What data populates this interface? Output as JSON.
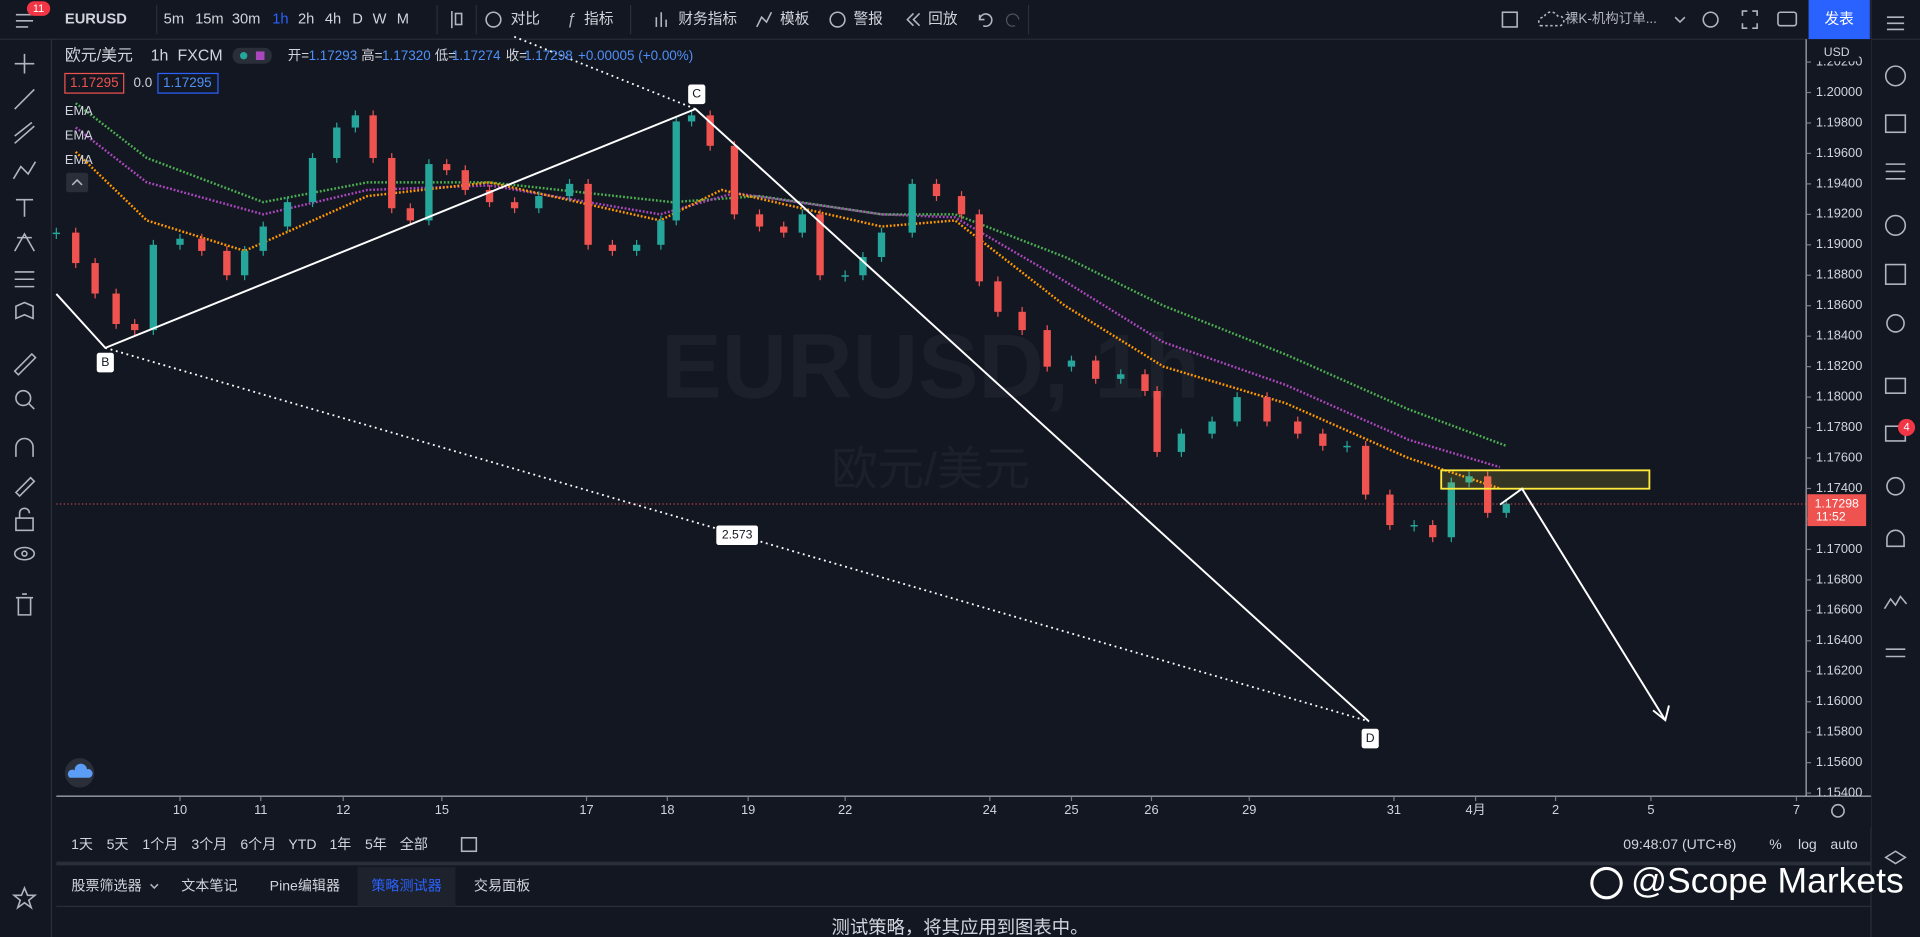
{
  "toolbar": {
    "badge": "11",
    "symbol": "EURUSD",
    "intervals": [
      "5m",
      "15m",
      "30m",
      "1h",
      "2h",
      "4h",
      "D",
      "W",
      "M"
    ],
    "buttons": [
      "对比",
      "指标",
      "财务指标",
      "模板",
      "警报",
      "回放"
    ],
    "layout_name": "裸K-机构订单...",
    "publish": "发表"
  },
  "legend": {
    "name": "欧元/美元",
    "interval": "1h",
    "source": "FXCM",
    "ohlc": [
      {
        "key": "开=",
        "value": "1.17293"
      },
      {
        "key": "高=",
        "value": "1.17320"
      },
      {
        "key": "低=",
        "value": "1.17274"
      },
      {
        "key": "收=",
        "value": "1.17298"
      }
    ],
    "change": "+0.00005 (+0.00%)",
    "bid": "1.17295",
    "spread": "0.0",
    "ask": "1.17295"
  },
  "chart_data": {
    "type": "candlestick",
    "currency": "USD",
    "watermark": [
      "EURUSD, 1h",
      "欧元/美元"
    ],
    "up_color": "#26a69a",
    "down_color": "#ef5350",
    "x": [
      -1.53,
      -1.29,
      -1.05,
      -0.79,
      -0.56,
      -0.33,
      0,
      0.27,
      0.58,
      0.8,
      1.03,
      1.33,
      1.64,
      1.94,
      2.17,
      2.39,
      2.62,
      2.85,
      3.08,
      3.3,
      3.53,
      3.83,
      4.14,
      4.44,
      4.82,
      5.05,
      5.35,
      5.65,
      5.95,
      6.14,
      6.33,
      6.56,
      6.86,
      7.17,
      7.47,
      7.7,
      7.92,
      8.23,
      8.45,
      8.68,
      9.06,
      9.36,
      9.67,
      9.89,
      10.12,
      10.42,
      10.73,
      11.03,
      11.33,
      11.64,
      11.94,
      12.09,
      12.39,
      12.77,
      13.08,
      13.45,
      13.83,
      14.14,
      14.44,
      14.67,
      14.97,
      15.27,
      15.5,
      15.73,
      15.95,
      16.18,
      16.41
    ],
    "close": [
      1.1908,
      1.1888,
      1.1868,
      1.1848,
      1.1844,
      1.19,
      1.1904,
      1.1896,
      1.188,
      1.1896,
      1.1912,
      1.1928,
      1.1957,
      1.1977,
      1.1985,
      1.1957,
      1.1924,
      1.1916,
      1.1953,
      1.1949,
      1.1936,
      1.1928,
      1.1924,
      1.1932,
      1.194,
      1.19,
      1.1896,
      1.19,
      1.1916,
      1.1981,
      1.1985,
      1.1965,
      1.192,
      1.1912,
      1.1908,
      1.192,
      1.188,
      1.188,
      1.1892,
      1.1908,
      1.194,
      1.1932,
      1.192,
      1.1876,
      1.1856,
      1.1844,
      1.182,
      1.1824,
      1.1812,
      1.1815,
      1.1804,
      1.1764,
      1.1776,
      1.1784,
      1.18,
      1.1784,
      1.1776,
      1.1768,
      1.1768,
      1.1736,
      1.1716,
      1.1716,
      1.1708,
      1.1744,
      1.1748,
      1.1724,
      1.173
    ],
    "ema": [
      {
        "name": "EMA",
        "color": "#4caf50",
        "x": [
          -1.29,
          -0.41,
          1.03,
          2.32,
          3.83,
          6.09,
          7.17,
          8.68,
          9.59,
          10.95,
          12.17,
          13.68,
          15.2,
          16.41
        ],
        "values": [
          1.1993,
          1.1957,
          1.1928,
          1.1941,
          1.1941,
          1.1928,
          1.1932,
          1.192,
          1.192,
          1.1892,
          1.186,
          1.1828,
          1.1792,
          1.1768
        ]
      },
      {
        "name": "EMA",
        "color": "#ab47bc",
        "x": [
          -1.29,
          -0.41,
          1.03,
          2.32,
          3.83,
          5.94,
          6.86,
          8.68,
          9.59,
          10.95,
          12.17,
          13.68,
          15.2,
          16.33
        ],
        "values": [
          1.1977,
          1.1941,
          1.192,
          1.1936,
          1.1939,
          1.192,
          1.1934,
          1.192,
          1.1918,
          1.1876,
          1.1836,
          1.1808,
          1.1772,
          1.1754
        ]
      },
      {
        "name": "EMA",
        "color": "#ff9800",
        "x": [
          -1.29,
          -0.41,
          0.8,
          2.32,
          3.83,
          5.94,
          6.7,
          8.68,
          9.59,
          10.95,
          12.17,
          13.68,
          15.2,
          16.33
        ],
        "values": [
          1.1961,
          1.1916,
          1.1896,
          1.1932,
          1.1941,
          1.1916,
          1.1936,
          1.1912,
          1.1916,
          1.186,
          1.182,
          1.1796,
          1.176,
          1.174
        ]
      }
    ],
    "current_price": 1.17298,
    "countdown": "11:52",
    "annotations": {
      "points": [
        "B",
        "C",
        "D"
      ],
      "ratio": "2.573"
    },
    "xlim": [
      -1.53,
      20.12
    ],
    "xticks": [
      {
        "value": 0,
        "label": "10"
      },
      {
        "value": 1,
        "label": "11"
      },
      {
        "value": 2.02,
        "label": "12"
      },
      {
        "value": 3.24,
        "label": "15"
      },
      {
        "value": 5.03,
        "label": "17"
      },
      {
        "value": 6.03,
        "label": "18"
      },
      {
        "value": 7.03,
        "label": "19"
      },
      {
        "value": 8.23,
        "label": "22"
      },
      {
        "value": 10.02,
        "label": "24"
      },
      {
        "value": 11.03,
        "label": "25"
      },
      {
        "value": 12.02,
        "label": "26"
      },
      {
        "value": 13.23,
        "label": "29"
      },
      {
        "value": 15.02,
        "label": "31"
      },
      {
        "value": 16.03,
        "label": "4月"
      },
      {
        "value": 17.02,
        "label": "2"
      },
      {
        "value": 18.2,
        "label": "5"
      },
      {
        "value": 20,
        "label": "7"
      }
    ],
    "ylim": [
      1.1538,
      1.2035
    ],
    "yticks": [
      {
        "value": 1.154,
        "label": "1.15400"
      },
      {
        "value": 1.156,
        "label": "1.15600"
      },
      {
        "value": 1.158,
        "label": "1.15800"
      },
      {
        "value": 1.16,
        "label": "1.16000"
      },
      {
        "value": 1.162,
        "label": "1.16200"
      },
      {
        "value": 1.164,
        "label": "1.16400"
      },
      {
        "value": 1.166,
        "label": "1.16600"
      },
      {
        "value": 1.168,
        "label": "1.16800"
      },
      {
        "value": 1.17,
        "label": "1.17000"
      },
      {
        "value": 1.172,
        "label": "1.17200"
      },
      {
        "value": 1.174,
        "label": "1.17400"
      },
      {
        "value": 1.176,
        "label": "1.17600"
      },
      {
        "value": 1.178,
        "label": "1.17800"
      },
      {
        "value": 1.18,
        "label": "1.18000"
      },
      {
        "value": 1.182,
        "label": "1.18200"
      },
      {
        "value": 1.184,
        "label": "1.18400"
      },
      {
        "value": 1.186,
        "label": "1.18600"
      },
      {
        "value": 1.188,
        "label": "1.18800"
      },
      {
        "value": 1.19,
        "label": "1.19000"
      },
      {
        "value": 1.192,
        "label": "1.19200"
      },
      {
        "value": 1.194,
        "label": "1.19400"
      },
      {
        "value": 1.196,
        "label": "1.19600"
      },
      {
        "value": 1.198,
        "label": "1.19800"
      },
      {
        "value": 1.2,
        "label": "1.20000"
      },
      {
        "value": 1.202,
        "label": "1.20200"
      }
    ]
  },
  "bottom": {
    "ranges": [
      "1天",
      "5天",
      "1个月",
      "3个月",
      "6个月",
      "YTD",
      "1年",
      "5年",
      "全部"
    ],
    "clock": "09:48:07 (UTC+8)",
    "options": [
      "%",
      "log",
      "auto"
    ],
    "tabs": [
      "股票筛选器",
      "文本笔记",
      "Pine编辑器",
      "策略测试器",
      "交易面板"
    ],
    "message": "测试策略，将其应用到图表中。"
  },
  "sidebar_badge": "4",
  "watermark": "@Scope Markets"
}
